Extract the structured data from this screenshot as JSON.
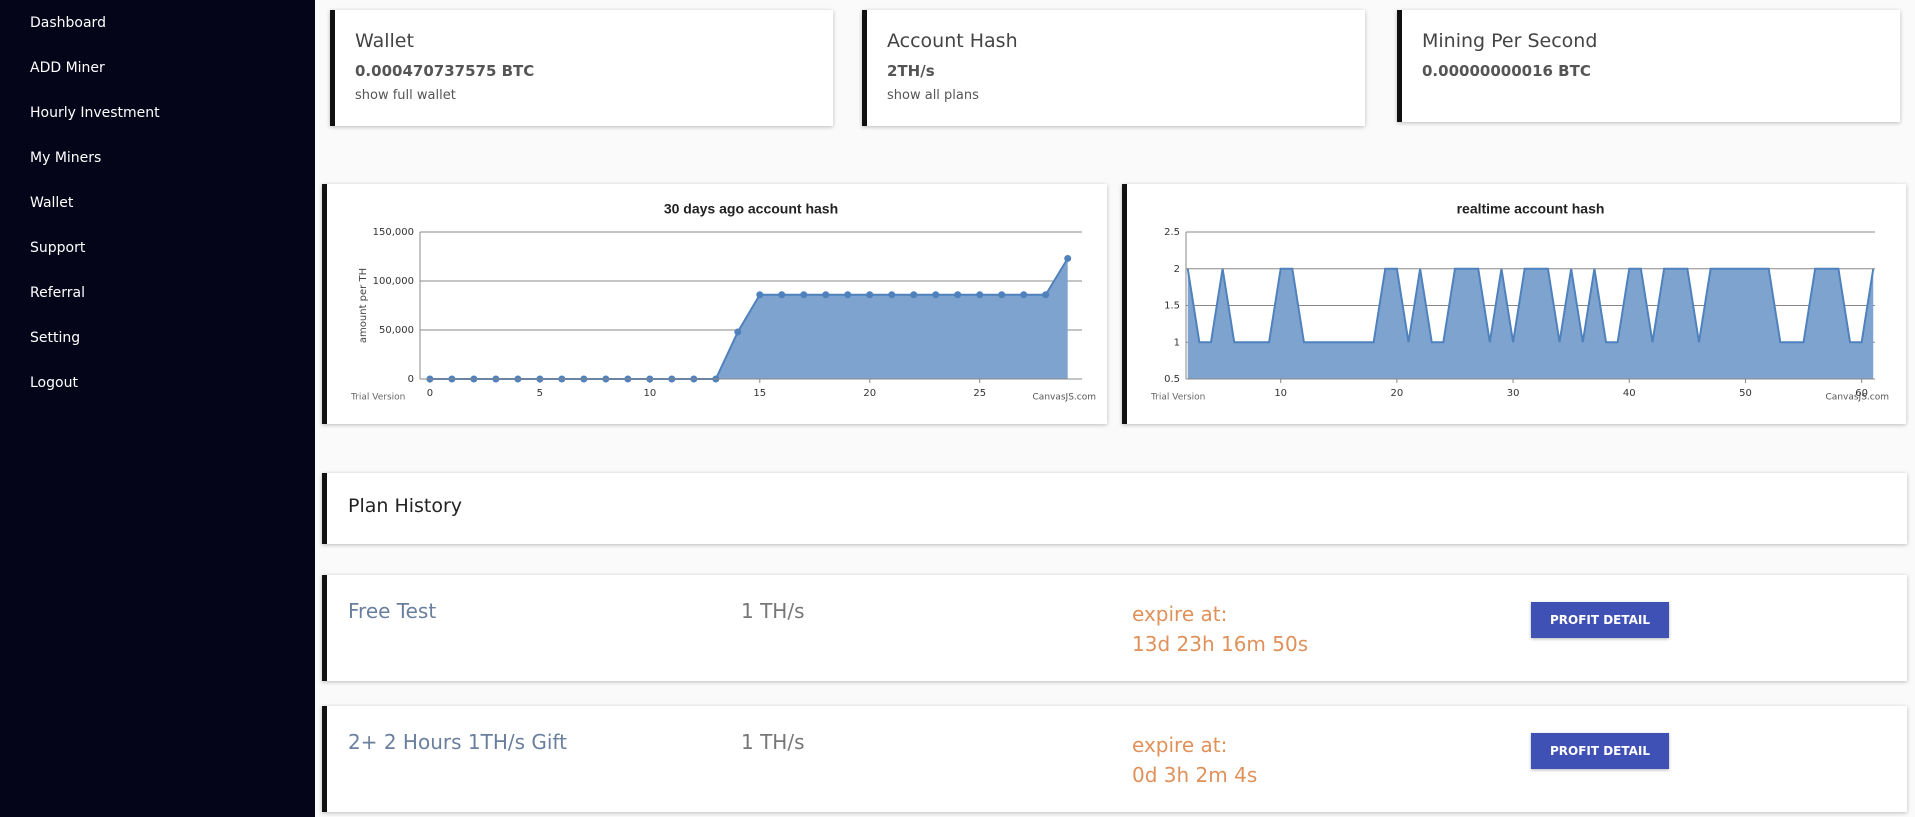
{
  "sidebar": {
    "items": [
      "Dashboard",
      "ADD Miner",
      "Hourly Investment",
      "My Miners",
      "Wallet",
      "Support",
      "Referral",
      "Setting",
      "Logout"
    ]
  },
  "cards": [
    {
      "title": "Wallet",
      "value": "0.000470737575 BTC",
      "link": "show full wallet"
    },
    {
      "title": "Account Hash",
      "value": "2TH/s",
      "link": "show all plans"
    },
    {
      "title": "Mining Per Second",
      "value": "0.00000000016 BTC"
    }
  ],
  "chart_data": [
    {
      "type": "area",
      "title": "30 days ago account hash",
      "y_label": "amount per TH",
      "credits": [
        "Trial Version",
        "CanvasJS.com"
      ],
      "x": [
        0,
        1,
        2,
        3,
        4,
        5,
        6,
        7,
        8,
        9,
        10,
        11,
        12,
        13,
        14,
        15,
        16,
        17,
        18,
        19,
        20,
        21,
        22,
        23,
        24,
        25,
        26,
        27,
        28,
        29
      ],
      "values": [
        0,
        0,
        0,
        0,
        0,
        0,
        0,
        0,
        0,
        0,
        0,
        0,
        0,
        0,
        48000,
        86000,
        86000,
        86000,
        86000,
        86000,
        86000,
        86000,
        86000,
        86000,
        86000,
        86000,
        86000,
        86000,
        86000,
        123000
      ],
      "xlim": [
        -0.45,
        29.65
      ],
      "xticks": [
        0,
        5,
        10,
        15,
        20,
        25
      ],
      "ylim": [
        0,
        150000
      ],
      "yticks": [
        0,
        {
          "value": 50000,
          "label": "50,000"
        },
        {
          "value": 100000,
          "label": "100,000"
        },
        {
          "value": 150000,
          "label": "150,000"
        }
      ],
      "grid": true,
      "markers": true,
      "color": "#4f81bd",
      "fill": "#7fa3cf"
    },
    {
      "type": "area",
      "title": "realtime account hash",
      "credits": [
        "Trial Version",
        "CanvasJS.com"
      ],
      "x": [
        2,
        3,
        4,
        5,
        6,
        7,
        8,
        9,
        10,
        11,
        12,
        13,
        14,
        15,
        16,
        17,
        18,
        19,
        20,
        21,
        22,
        23,
        24,
        25,
        26,
        27,
        28,
        29,
        30,
        31,
        32,
        33,
        34,
        35,
        36,
        37,
        38,
        39,
        40,
        41,
        42,
        43,
        44,
        45,
        46,
        47,
        48,
        49,
        50,
        51,
        52,
        53,
        54,
        55,
        56,
        57,
        58,
        59,
        60,
        61
      ],
      "values": [
        2,
        1,
        1,
        2,
        1,
        1,
        1,
        1,
        2,
        2,
        1,
        1,
        1,
        1,
        1,
        1,
        1,
        2,
        2,
        1,
        2,
        1,
        1,
        2,
        2,
        2,
        1,
        2,
        1,
        2,
        2,
        2,
        1,
        2,
        1,
        2,
        1,
        1,
        2,
        2,
        1,
        2,
        2,
        2,
        1,
        2,
        2,
        2,
        2,
        2,
        2,
        1,
        1,
        1,
        2,
        2,
        2,
        1,
        1,
        2
      ],
      "xlim": [
        1.85,
        61.15
      ],
      "xticks": [
        10,
        20,
        30,
        40,
        50,
        60
      ],
      "ylim": [
        0.5,
        2.5
      ],
      "yticks": [
        0.5,
        1,
        1.5,
        2,
        2.5
      ],
      "grid": true,
      "markers": false,
      "color": "#4f81bd",
      "fill": "#7fa3cf"
    }
  ],
  "plan_history": {
    "title": "Plan History"
  },
  "plans": [
    {
      "name": "Free Test",
      "hash": "1 TH/s",
      "expire_label": "expire at:",
      "expire_value": "13d 23h 16m 50s",
      "button": "PROFIT DETAIL"
    },
    {
      "name": "2+ 2 Hours 1TH/s Gift",
      "hash": "1 TH/s",
      "expire_label": "expire at:",
      "expire_value": "0d 3h 2m 4s",
      "button": "PROFIT DETAIL"
    }
  ]
}
